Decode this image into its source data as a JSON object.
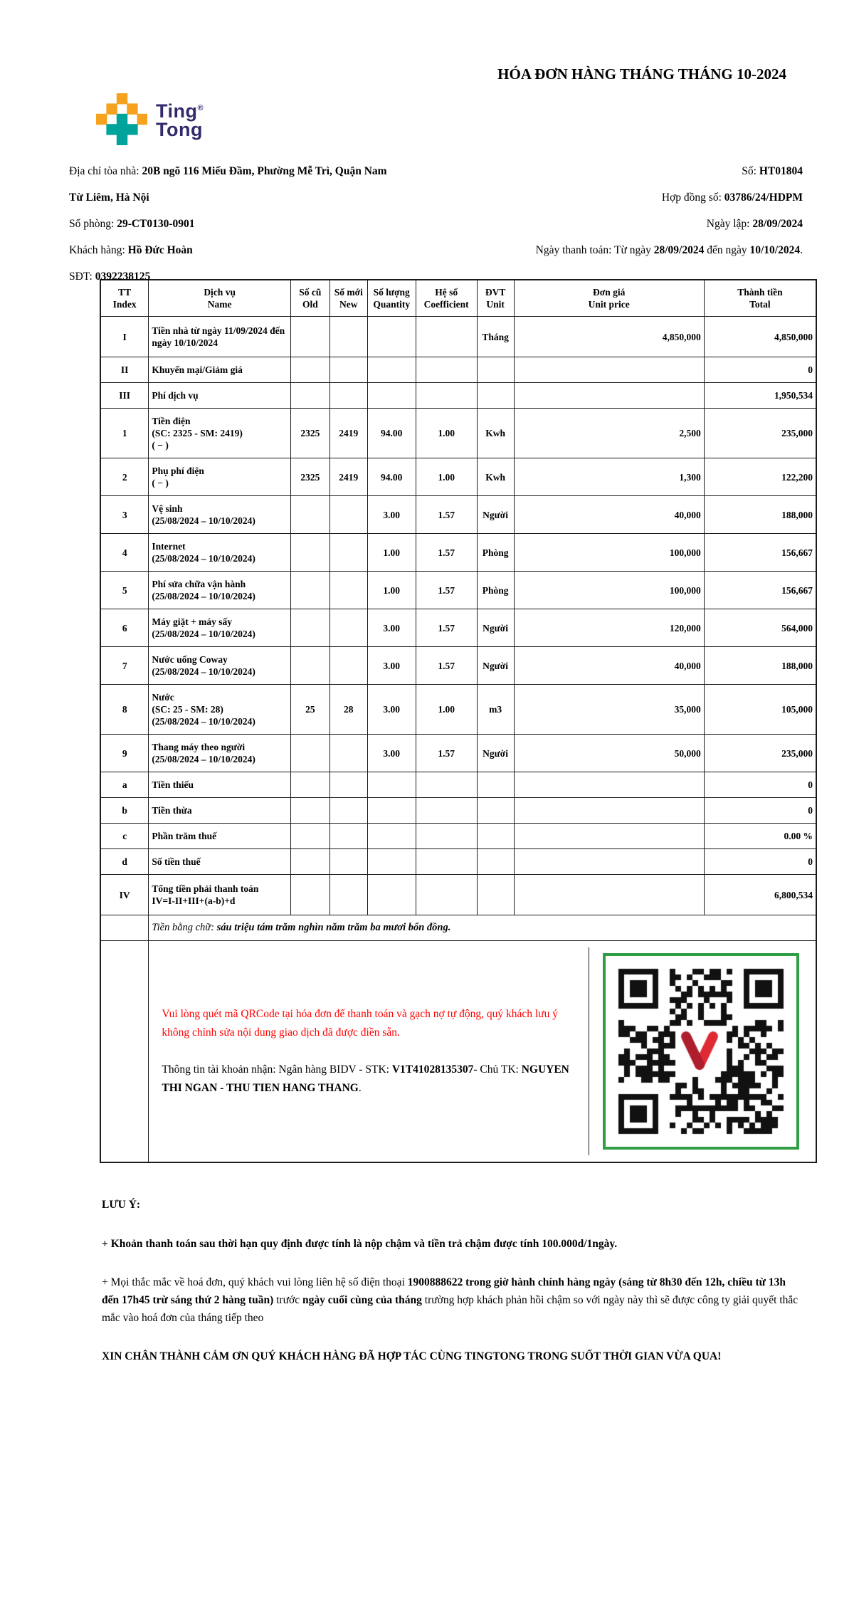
{
  "colors": {
    "accent_orange": "#F6A21E",
    "accent_teal": "#00A39B",
    "brand_navy": "#322B6A",
    "alert_red": "#FF0000",
    "qr_green": "#2F9E45"
  },
  "brand": {
    "line1": "Ting",
    "line2": "Tong",
    "reg": "®"
  },
  "title": "HÓA ĐƠN HÀNG THÁNG THÁNG 10-2024",
  "info": {
    "left": [
      [
        {
          "t": "Địa chỉ tòa nhà: "
        },
        {
          "t": "20B ngõ 116 Miếu Đầm, Phường Mễ Trì, Quận Nam Từ Liêm, Hà Nội",
          "b": true
        }
      ],
      [
        {
          "t": "Số phòng: "
        },
        {
          "t": "29-CT0130-0901",
          "b": true
        }
      ],
      [
        {
          "t": "Khách hàng: "
        },
        {
          "t": "Hồ Đức Hoàn",
          "b": true
        }
      ],
      [
        {
          "t": "SĐT: "
        },
        {
          "t": "0392238125",
          "b": true
        }
      ]
    ],
    "right": [
      [
        {
          "t": "Số: "
        },
        {
          "t": "HT01804",
          "b": true
        }
      ],
      [
        {
          "t": "Hợp đồng số: "
        },
        {
          "t": "03786/24/HDPM",
          "b": true
        }
      ],
      [
        {
          "t": "Ngày lập: "
        },
        {
          "t": "28/09/2024",
          "b": true
        }
      ],
      [
        {
          "t": "Ngày thanh toán: Từ ngày "
        },
        {
          "t": "28/09/2024",
          "b": true
        },
        {
          "t": " đến ngày "
        },
        {
          "t": "10/10/2024",
          "b": true
        },
        {
          "t": "."
        }
      ]
    ]
  },
  "table": {
    "col_headers": [
      {
        "vi": "TT",
        "en": "Index"
      },
      {
        "vi": "Dịch vụ",
        "en": "Name"
      },
      {
        "vi": "Số cũ",
        "en": "Old"
      },
      {
        "vi": "Số mới",
        "en": "New"
      },
      {
        "vi": "Số lượng",
        "en": "Quantity"
      },
      {
        "vi": "Hệ số",
        "en": "Coefficient"
      },
      {
        "vi": "ĐVT",
        "en": "Unit"
      },
      {
        "vi": "Đơn giá",
        "en": "Unit price"
      },
      {
        "vi": "Thành tiền",
        "en": "Total"
      }
    ],
    "rows": [
      {
        "tt": "I",
        "name": [
          "Tiền nhà từ ngày 11/09/2024 đến ngày 10/10/2024"
        ],
        "old": "",
        "new": "",
        "qty": "",
        "coef": "",
        "unit": "Tháng",
        "price": "4,850,000",
        "total": "4,850,000",
        "tall": true
      },
      {
        "tt": "II",
        "name": [
          "Khuyến mại/Giảm giá"
        ],
        "old": "",
        "new": "",
        "qty": "",
        "coef": "",
        "unit": "",
        "price": "",
        "total": "0"
      },
      {
        "tt": "III",
        "name": [
          "Phí dịch vụ"
        ],
        "old": "",
        "new": "",
        "qty": "",
        "coef": "",
        "unit": "",
        "price": "",
        "total": "1,950,534"
      },
      {
        "tt": "1",
        "name": [
          "Tiền điện",
          "(SC: 2325 - SM: 2419)",
          "( − )"
        ],
        "old": "2325",
        "new": "2419",
        "qty": "94.00",
        "coef": "1.00",
        "unit": "Kwh",
        "price": "2,500",
        "total": "235,000"
      },
      {
        "tt": "2",
        "name": [
          "Phụ phí điện",
          "( − )"
        ],
        "old": "2325",
        "new": "2419",
        "qty": "94.00",
        "coef": "1.00",
        "unit": "Kwh",
        "price": "1,300",
        "total": "122,200"
      },
      {
        "tt": "3",
        "name": [
          "Vệ sinh",
          "(25/08/2024 – 10/10/2024)"
        ],
        "old": "",
        "new": "",
        "qty": "3.00",
        "coef": "1.57",
        "unit": "Người",
        "price": "40,000",
        "total": "188,000"
      },
      {
        "tt": "4",
        "name": [
          "Internet",
          "(25/08/2024 – 10/10/2024)"
        ],
        "old": "",
        "new": "",
        "qty": "1.00",
        "coef": "1.57",
        "unit": "Phòng",
        "price": "100,000",
        "total": "156,667"
      },
      {
        "tt": "5",
        "name": [
          "Phí sửa chữa vận hành",
          "(25/08/2024 – 10/10/2024)"
        ],
        "old": "",
        "new": "",
        "qty": "1.00",
        "coef": "1.57",
        "unit": "Phòng",
        "price": "100,000",
        "total": "156,667"
      },
      {
        "tt": "6",
        "name": [
          "Máy giặt + máy sấy",
          "(25/08/2024 – 10/10/2024)"
        ],
        "old": "",
        "new": "",
        "qty": "3.00",
        "coef": "1.57",
        "unit": "Người",
        "price": "120,000",
        "total": "564,000"
      },
      {
        "tt": "7",
        "name": [
          "Nước uống Coway",
          "(25/08/2024 – 10/10/2024)"
        ],
        "old": "",
        "new": "",
        "qty": "3.00",
        "coef": "1.57",
        "unit": "Người",
        "price": "40,000",
        "total": "188,000"
      },
      {
        "tt": "8",
        "name": [
          "Nước",
          "(SC: 25 - SM: 28)",
          "(25/08/2024 – 10/10/2024)"
        ],
        "old": "25",
        "new": "28",
        "qty": "3.00",
        "coef": "1.00",
        "unit": "m3",
        "price": "35,000",
        "total": "105,000"
      },
      {
        "tt": "9",
        "name": [
          "Thang máy theo người",
          "(25/08/2024 – 10/10/2024)"
        ],
        "old": "",
        "new": "",
        "qty": "3.00",
        "coef": "1.57",
        "unit": "Người",
        "price": "50,000",
        "total": "235,000"
      },
      {
        "tt": "a",
        "name": [
          "Tiền thiếu"
        ],
        "old": "",
        "new": "",
        "qty": "",
        "coef": "",
        "unit": "",
        "price": "",
        "total": "0"
      },
      {
        "tt": "b",
        "name": [
          "Tiền thừa"
        ],
        "old": "",
        "new": "",
        "qty": "",
        "coef": "",
        "unit": "",
        "price": "",
        "total": "0"
      },
      {
        "tt": "c",
        "name": [
          "Phần trăm thuế"
        ],
        "old": "",
        "new": "",
        "qty": "",
        "coef": "",
        "unit": "",
        "price": "",
        "total": "0.00 %"
      },
      {
        "tt": "d",
        "name": [
          "Số tiền thuế"
        ],
        "old": "",
        "new": "",
        "qty": "",
        "coef": "",
        "unit": "",
        "price": "",
        "total": "0"
      },
      {
        "tt": "IV",
        "name": [
          "Tổng tiền phải thanh toán",
          "IV=I-II+III+(a-b)+d"
        ],
        "old": "",
        "new": "",
        "qty": "",
        "coef": "",
        "unit": "",
        "price": "",
        "total": "6,800,534",
        "tall": true
      }
    ],
    "amount_words_segments": [
      {
        "t": "Tiền bằng chữ: ",
        "i": true
      },
      {
        "t": "sáu triệu tám trăm nghìn năm trăm ba mươi bốn đồng.",
        "b": true,
        "i": true
      }
    ]
  },
  "qr_section": {
    "note_red": "Vui lòng quét mã QRCode tại hóa đơn để thanh toán và gạch nợ tự động, quý khách lưu ý không chỉnh sửa nội dung giao dịch đã được điền sẵn.",
    "account_segments": [
      {
        "t": "Thông tin tài khoản nhận: Ngân hàng BIDV - STK: "
      },
      {
        "t": "V1T41028135307",
        "b": true
      },
      {
        "t": "- Chủ TK: "
      },
      {
        "t": "NGUYEN THI NGAN - THU TIEN HANG THANG",
        "b": true
      },
      {
        "t": "."
      }
    ]
  },
  "notes": {
    "heading": "LƯU Ý:",
    "items": [
      {
        "segments": [
          {
            "t": "+ Khoản thanh toán sau thời hạn quy định được tính là nộp chậm và tiền trả chậm được tính 100.000d/1ngày.",
            "b": true
          }
        ]
      },
      {
        "segments": [
          {
            "t": "+ Mọi thắc mắc về hoá đơn, quý khách vui lòng liên hệ số điện thoại "
          },
          {
            "t": "1900888622 trong giờ hành chính hàng ngày (sáng từ 8h30 đến 12h, chiều từ 13h đến 17h45 trừ sáng thứ 2 hàng tuần)",
            "b": true
          },
          {
            "t": " trước "
          },
          {
            "t": "ngày cuối cùng của tháng",
            "b": true
          },
          {
            "t": " trường hợp khách phản hồi chậm so với ngày này thì sẽ được công ty giải quyết thắc mắc vào hoá đơn của tháng tiếp theo"
          }
        ]
      }
    ],
    "thanks": "XIN CHÂN THÀNH CẢM ƠN QUÝ KHÁCH HÀNG ĐÃ HỢP TÁC CÙNG TINGTONG TRONG SUỐT THỜI GIAN VỪA QUA!"
  }
}
